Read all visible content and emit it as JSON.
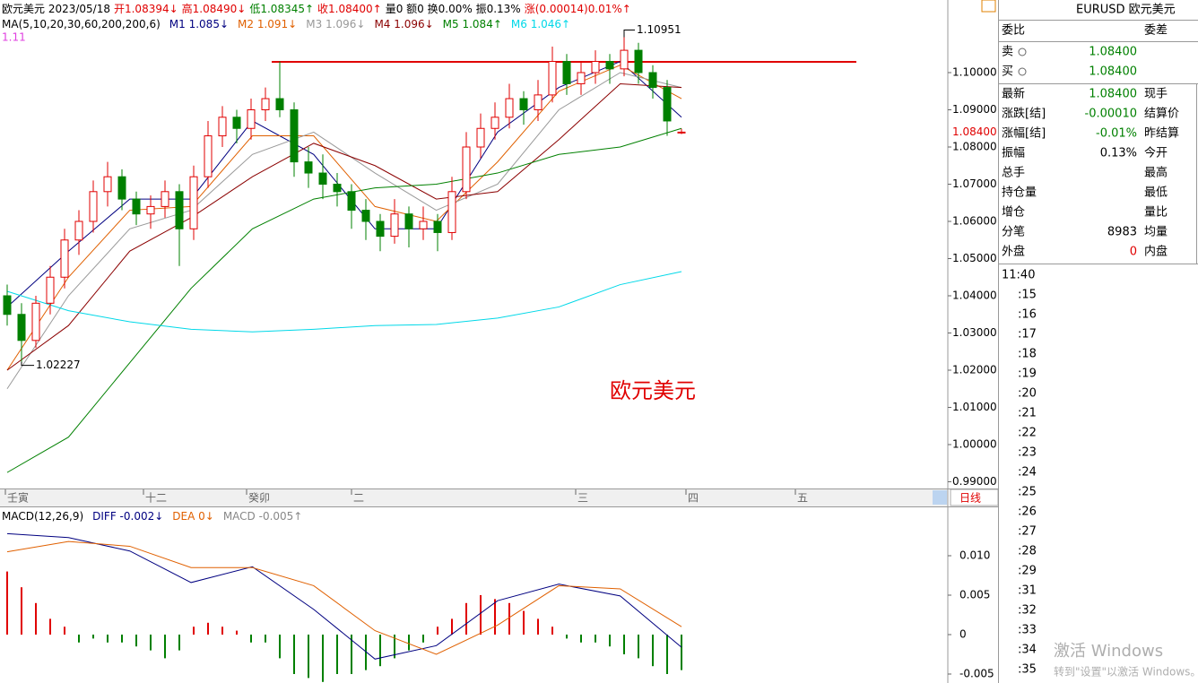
{
  "header": {
    "segments": [
      {
        "text": "欧元美元 2023/05/18",
        "color": "#000000"
      },
      {
        "text": "开1.08394↓",
        "color": "#e00000"
      },
      {
        "text": "高1.08490↓",
        "color": "#e00000"
      },
      {
        "text": "低1.08345↑",
        "color": "#008000"
      },
      {
        "text": "收1.08400↑",
        "color": "#e00000"
      },
      {
        "text": "量0 额0 换0.00% 振0.13%",
        "color": "#000000"
      },
      {
        "text": "涨(0.00014)0.01%↑",
        "color": "#e00000"
      }
    ],
    "ma_title": "MA(5,10,20,30,60,200,200,6)",
    "extra": {
      "text": "1.11",
      "color": "#e040e0"
    }
  },
  "main": {
    "price_ticks": [
      {
        "value": 1.1,
        "label": "1.10000"
      },
      {
        "value": 1.09,
        "label": "1.09000"
      },
      {
        "value": 1.08,
        "label": "1.08000"
      },
      {
        "value": 1.07,
        "label": "1.07000"
      },
      {
        "value": 1.06,
        "label": "1.06000"
      },
      {
        "value": 1.05,
        "label": "1.05000"
      },
      {
        "value": 1.04,
        "label": "1.04000"
      },
      {
        "value": 1.03,
        "label": "1.03000"
      },
      {
        "value": 1.02,
        "label": "1.02000"
      },
      {
        "value": 1.01,
        "label": "1.01000"
      },
      {
        "value": 1.0,
        "label": "1.00000"
      },
      {
        "value": 0.99,
        "label": "0.99000"
      }
    ],
    "current_price": {
      "value": 1.084,
      "label": "1.08400"
    },
    "up_color": "#e00000",
    "down_color": "#008000",
    "candles": [
      [
        1.04,
        1.043,
        1.032,
        1.035
      ],
      [
        1.035,
        1.038,
        1.02227,
        1.028
      ],
      [
        1.028,
        1.04,
        1.026,
        1.038
      ],
      [
        1.038,
        1.048,
        1.035,
        1.045
      ],
      [
        1.045,
        1.058,
        1.042,
        1.055
      ],
      [
        1.055,
        1.063,
        1.051,
        1.06
      ],
      [
        1.06,
        1.071,
        1.057,
        1.068
      ],
      [
        1.068,
        1.076,
        1.064,
        1.072
      ],
      [
        1.072,
        1.074,
        1.063,
        1.066
      ],
      [
        1.066,
        1.068,
        1.059,
        1.062
      ],
      [
        1.062,
        1.067,
        1.058,
        1.064
      ],
      [
        1.064,
        1.071,
        1.061,
        1.068
      ],
      [
        1.068,
        1.07,
        1.048,
        1.058
      ],
      [
        1.058,
        1.075,
        1.055,
        1.072
      ],
      [
        1.072,
        1.087,
        1.069,
        1.083
      ],
      [
        1.083,
        1.091,
        1.08,
        1.088
      ],
      [
        1.088,
        1.09,
        1.081,
        1.085
      ],
      [
        1.085,
        1.093,
        1.082,
        1.09
      ],
      [
        1.09,
        1.096,
        1.087,
        1.093
      ],
      [
        1.093,
        1.103,
        1.088,
        1.09
      ],
      [
        1.09,
        1.092,
        1.072,
        1.076
      ],
      [
        1.076,
        1.08,
        1.069,
        1.073
      ],
      [
        1.073,
        1.078,
        1.066,
        1.07
      ],
      [
        1.07,
        1.073,
        1.064,
        1.068
      ],
      [
        1.068,
        1.07,
        1.058,
        1.063
      ],
      [
        1.063,
        1.066,
        1.055,
        1.06
      ],
      [
        1.06,
        1.062,
        1.052,
        1.056
      ],
      [
        1.056,
        1.066,
        1.054,
        1.062
      ],
      [
        1.062,
        1.064,
        1.053,
        1.058
      ],
      [
        1.058,
        1.064,
        1.055,
        1.06
      ],
      [
        1.06,
        1.062,
        1.052,
        1.057
      ],
      [
        1.057,
        1.072,
        1.055,
        1.068
      ],
      [
        1.068,
        1.084,
        1.066,
        1.08
      ],
      [
        1.08,
        1.089,
        1.077,
        1.085
      ],
      [
        1.085,
        1.092,
        1.082,
        1.088
      ],
      [
        1.088,
        1.097,
        1.085,
        1.093
      ],
      [
        1.093,
        1.095,
        1.086,
        1.09
      ],
      [
        1.09,
        1.098,
        1.087,
        1.094
      ],
      [
        1.094,
        1.107,
        1.092,
        1.103
      ],
      [
        1.103,
        1.105,
        1.094,
        1.097
      ],
      [
        1.097,
        1.103,
        1.094,
        1.1
      ],
      [
        1.1,
        1.106,
        1.097,
        1.103
      ],
      [
        1.103,
        1.105,
        1.097,
        1.101
      ],
      [
        1.101,
        1.10951,
        1.099,
        1.106
      ],
      [
        1.106,
        1.108,
        1.097,
        1.1
      ],
      [
        1.1,
        1.102,
        1.093,
        1.096
      ],
      [
        1.096,
        1.098,
        1.083,
        1.087
      ],
      [
        1.08394,
        1.0849,
        1.08345,
        1.084
      ]
    ],
    "ma": [
      {
        "label": "M1 1.085↓",
        "color": "#000080",
        "values": [
          1.037,
          1.052,
          1.066,
          1.066,
          1.087,
          1.078,
          1.058,
          1.058,
          1.084,
          1.096,
          1.103,
          1.088
        ]
      },
      {
        "label": "M2 1.091↓",
        "color": "#e06000",
        "values": [
          1.02,
          1.045,
          1.063,
          1.064,
          1.083,
          1.083,
          1.064,
          1.06,
          1.076,
          1.095,
          1.102,
          1.093
        ]
      },
      {
        "label": "M3 1.096↓",
        "color": "#999999",
        "values": [
          1.015,
          1.04,
          1.058,
          1.063,
          1.078,
          1.084,
          1.073,
          1.063,
          1.07,
          1.09,
          1.1,
          1.096
        ]
      },
      {
        "label": "M4 1.096↓",
        "color": "#8b0000",
        "values": [
          1.02,
          1.032,
          1.052,
          1.061,
          1.072,
          1.081,
          1.075,
          1.066,
          1.068,
          1.082,
          1.097,
          1.096
        ]
      },
      {
        "label": "M5 1.084↑",
        "color": "#008000",
        "values": [
          0.9925,
          1.002,
          1.022,
          1.042,
          1.058,
          1.066,
          1.069,
          1.07,
          1.073,
          1.078,
          1.08,
          1.085
        ]
      },
      {
        "label": "M6 1.046↑",
        "color": "#00d8e8",
        "values": [
          1.0412,
          1.036,
          1.033,
          1.031,
          1.0303,
          1.031,
          1.032,
          1.0323,
          1.034,
          1.037,
          1.043,
          1.0465
        ]
      }
    ],
    "high_mark": 1.10951,
    "low_mark": 1.02227,
    "resistance": 1.1029,
    "watermark_title": "欧元美元"
  },
  "time_axis": {
    "labels": [
      "壬寅",
      "十二",
      "癸卯",
      "二",
      "三",
      "四",
      "五"
    ],
    "period": "日线"
  },
  "macd": {
    "title": "MACD(12,26,9)",
    "legend": [
      {
        "text": "DIFF -0.002↓",
        "color": "#000080"
      },
      {
        "text": "DEA 0↓",
        "color": "#e06000"
      },
      {
        "text": "MACD -0.005↑",
        "color": "#888888"
      }
    ],
    "ticks": [
      {
        "value": 0.01,
        "label": "0.010"
      },
      {
        "value": 0.005,
        "label": "0.005"
      },
      0,
      {
        "value": -0.005,
        "label": "-0.005"
      }
    ],
    "diff": [
      0.0128,
      0.0123,
      0.0106,
      0.0066,
      0.0086,
      0.0032,
      -0.0031,
      -0.0014,
      0.0043,
      0.0064,
      0.0049,
      -0.0016
    ],
    "dea": [
      0.0105,
      0.0118,
      0.0112,
      0.0085,
      0.0085,
      0.0062,
      0.0005,
      -0.0025,
      0.0012,
      0.0062,
      0.0058,
      0.001
    ],
    "hist": [
      0.008,
      0.006,
      0.004,
      0.002,
      0.001,
      -0.001,
      -0.0005,
      -0.001,
      -0.001,
      -0.0015,
      -0.002,
      -0.003,
      -0.002,
      0.001,
      0.0015,
      0.001,
      0.0005,
      -0.001,
      -0.001,
      -0.003,
      -0.005,
      -0.0055,
      -0.006,
      -0.005,
      -0.005,
      -0.0045,
      -0.004,
      -0.003,
      -0.002,
      -0.001,
      0.001,
      0.002,
      0.004,
      0.005,
      0.0045,
      0.004,
      0.003,
      0.002,
      0.001,
      -0.0005,
      -0.001,
      -0.001,
      -0.0015,
      -0.0025,
      -0.003,
      -0.004,
      -0.005,
      -0.0045
    ]
  },
  "quote": {
    "title": "EURUSD 欧元美元",
    "head": [
      "委比",
      "委差"
    ],
    "rows": [
      {
        "cells": [
          "卖",
          "1.08400",
          ""
        ],
        "color": "#008000"
      },
      {
        "cells": [
          "买",
          "1.08400",
          ""
        ],
        "color": "#008000"
      },
      {
        "cells": [
          "最新",
          "1.08400",
          "现手"
        ],
        "color": "#008000"
      },
      {
        "cells": [
          "涨跌[结]",
          "-0.00010",
          "结算价"
        ],
        "color": "#008000"
      },
      {
        "cells": [
          "涨幅[结]",
          "-0.01%",
          "昨结算"
        ],
        "color": "#008000"
      },
      {
        "cells": [
          "振幅",
          "0.13%",
          "今开"
        ],
        "color": "#000000"
      },
      {
        "cells": [
          "总手",
          "",
          "最高"
        ],
        "color": "#000000"
      },
      {
        "cells": [
          "持仓量",
          "",
          "最低"
        ],
        "color": "#000000"
      },
      {
        "cells": [
          "增仓",
          "",
          "量比"
        ],
        "color": "#000000"
      },
      {
        "cells": [
          "分笔",
          "8983",
          "均量"
        ],
        "color": "#000000"
      },
      {
        "cells": [
          "外盘",
          "0",
          "内盘"
        ],
        "color": "#e00000"
      }
    ],
    "times": [
      "11:40",
      ":15",
      ":16",
      ":17",
      ":18",
      ":19",
      ":20",
      ":21",
      ":22",
      ":23",
      ":24",
      ":25",
      ":26",
      ":27",
      ":28",
      ":29",
      ":31",
      ":32",
      ":33",
      ":34",
      ":35"
    ]
  },
  "watermark": {
    "line1": "激活 Windows",
    "line2": "转到\"设置\"以激活 Windows。"
  }
}
